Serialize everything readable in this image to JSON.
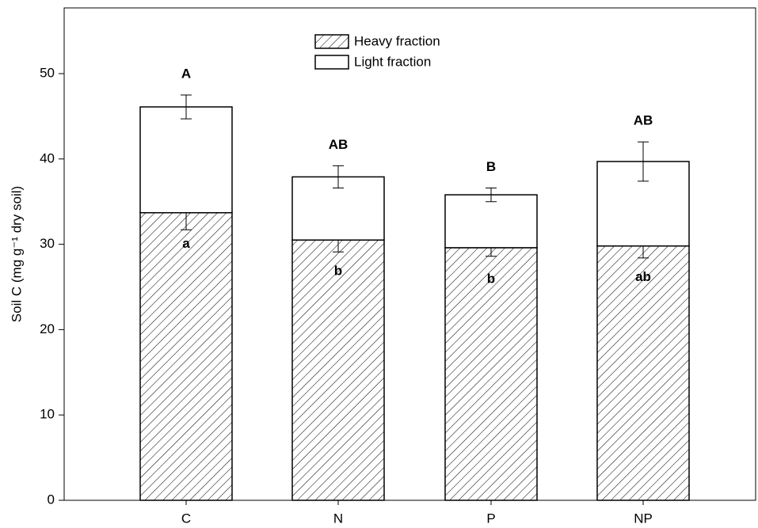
{
  "chart_data": {
    "type": "bar",
    "stacked": true,
    "y_label": "Soil C (mg g⁻¹ dry soil)",
    "categories": [
      "C",
      "N",
      "P",
      "NP"
    ],
    "series": [
      {
        "name": "Heavy fraction",
        "hatch": true,
        "color": "#000000",
        "values": [
          33.7,
          30.5,
          29.6,
          29.8
        ],
        "errors": [
          2.0,
          1.4,
          1.0,
          1.4
        ],
        "letters": [
          "a",
          "b",
          "b",
          "ab"
        ]
      },
      {
        "name": "Light fraction",
        "hatch": false,
        "color": "#000000",
        "values": [
          12.4,
          7.4,
          6.2,
          9.9
        ],
        "errors": [
          1.4,
          1.3,
          0.8,
          2.3
        ],
        "letters": [
          "A",
          "AB",
          "B",
          "AB"
        ]
      }
    ],
    "ylim": [
      0,
      57.7
    ],
    "yticks": [
      0,
      10,
      20,
      30,
      40,
      50
    ],
    "grid": false,
    "legend": "top"
  }
}
